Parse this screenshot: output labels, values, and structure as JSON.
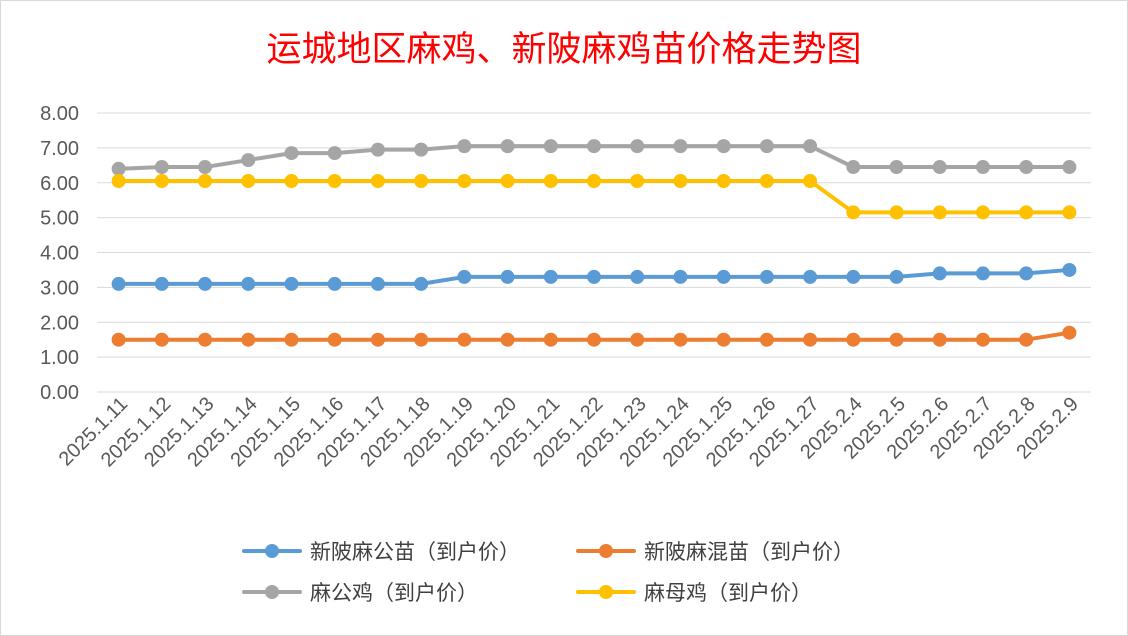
{
  "chart_data": {
    "type": "line",
    "title": "运城地区麻鸡、新陂麻鸡苗价格走势图",
    "xlabel": "",
    "ylabel": "",
    "ylim": [
      0,
      8
    ],
    "yticks": [
      "0.00",
      "1.00",
      "2.00",
      "3.00",
      "4.00",
      "5.00",
      "6.00",
      "7.00",
      "8.00"
    ],
    "grid": true,
    "legend_position": "bottom",
    "categories": [
      "2025.1.11",
      "2025.1.12",
      "2025.1.13",
      "2025.1.14",
      "2025.1.15",
      "2025.1.16",
      "2025.1.17",
      "2025.1.18",
      "2025.1.19",
      "2025.1.20",
      "2025.1.21",
      "2025.1.22",
      "2025.1.23",
      "2025.1.24",
      "2025.1.25",
      "2025.1.26",
      "2025.1.27",
      "2025.2.4",
      "2025.2.5",
      "2025.2.6",
      "2025.2.7",
      "2025.2.8",
      "2025.2.9"
    ],
    "series": [
      {
        "name": "新陂麻公苗（到户价）",
        "color": "#5b9bd5",
        "values": [
          3.1,
          3.1,
          3.1,
          3.1,
          3.1,
          3.1,
          3.1,
          3.1,
          3.3,
          3.3,
          3.3,
          3.3,
          3.3,
          3.3,
          3.3,
          3.3,
          3.3,
          3.3,
          3.3,
          3.4,
          3.4,
          3.4,
          3.5
        ]
      },
      {
        "name": "新陂麻混苗（到户价）",
        "color": "#ed7d31",
        "values": [
          1.5,
          1.5,
          1.5,
          1.5,
          1.5,
          1.5,
          1.5,
          1.5,
          1.5,
          1.5,
          1.5,
          1.5,
          1.5,
          1.5,
          1.5,
          1.5,
          1.5,
          1.5,
          1.5,
          1.5,
          1.5,
          1.5,
          1.7
        ]
      },
      {
        "name": "麻公鸡（到户价）",
        "color": "#a5a5a5",
        "values": [
          6.4,
          6.45,
          6.45,
          6.65,
          6.85,
          6.85,
          6.95,
          6.95,
          7.05,
          7.05,
          7.05,
          7.05,
          7.05,
          7.05,
          7.05,
          7.05,
          7.05,
          6.45,
          6.45,
          6.45,
          6.45,
          6.45,
          6.45
        ]
      },
      {
        "name": "麻母鸡（到户价）",
        "color": "#ffc000",
        "values": [
          6.05,
          6.05,
          6.05,
          6.05,
          6.05,
          6.05,
          6.05,
          6.05,
          6.05,
          6.05,
          6.05,
          6.05,
          6.05,
          6.05,
          6.05,
          6.05,
          6.05,
          5.15,
          5.15,
          5.15,
          5.15,
          5.15,
          5.15
        ]
      }
    ]
  },
  "colors": {
    "title": "#ff0000",
    "grid": "#d9d9d9",
    "axis_text": "#595959",
    "legend_text": "#404040"
  }
}
